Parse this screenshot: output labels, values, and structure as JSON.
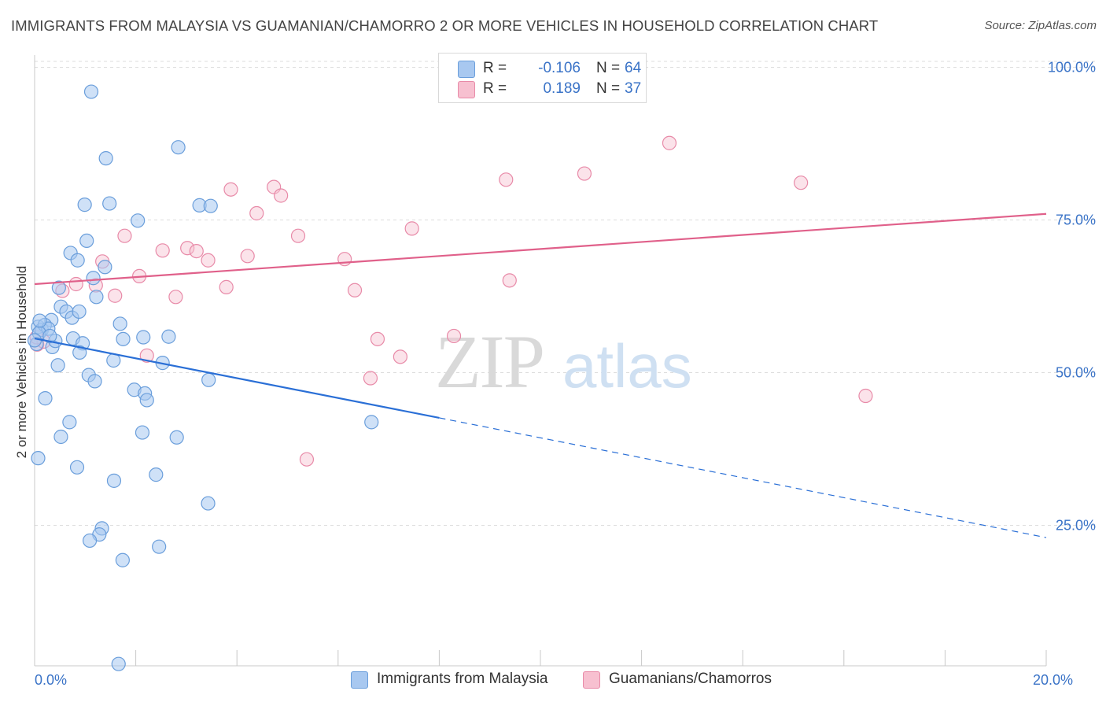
{
  "title": "IMMIGRANTS FROM MALAYSIA VS GUAMANIAN/CHAMORRO 2 OR MORE VEHICLES IN HOUSEHOLD CORRELATION CHART",
  "source": "Source: ZipAtlas.com",
  "watermark": {
    "zip": "ZIP",
    "atlas": "atlas"
  },
  "legend": {
    "r_label": "R =",
    "n_label": "N =",
    "series": [
      {
        "r": "-0.106",
        "n": "64"
      },
      {
        "r": "0.189",
        "n": "37"
      }
    ]
  },
  "colors": {
    "blue_fill": "#a8c8f0",
    "blue_stroke": "#6a9edb",
    "blue_line": "#2a6fd6",
    "pink_fill": "#f7c0d0",
    "pink_stroke": "#e88aa8",
    "pink_line": "#e0608a",
    "axis_label": "#3a73c7",
    "grid": "#dddddd"
  },
  "chart_data": {
    "type": "scatter",
    "title": "IMMIGRANTS FROM MALAYSIA VS GUAMANIAN/CHAMORRO 2 OR MORE VEHICLES IN HOUSEHOLD CORRELATION CHART",
    "xlabel": "",
    "ylabel": "2 or more Vehicles in Household",
    "xlim": [
      0,
      20
    ],
    "ylim": [
      2,
      102
    ],
    "x_tick_labels": [
      {
        "value": 0,
        "label": "0.0%"
      },
      {
        "value": 20,
        "label": "20.0%"
      }
    ],
    "y_tick_labels": [
      {
        "value": 100,
        "label": "100.0%"
      },
      {
        "value": 75,
        "label": "75.0%"
      },
      {
        "value": 50,
        "label": "50.0%"
      },
      {
        "value": 25,
        "label": "25.0%"
      }
    ],
    "grid": true,
    "legend_position": "top-center",
    "series": [
      {
        "name": "Immigrants from Malaysia",
        "points": [
          [
            1.12,
            96.0
          ],
          [
            1.41,
            85.1
          ],
          [
            2.84,
            86.9
          ],
          [
            0.99,
            77.5
          ],
          [
            1.48,
            77.7
          ],
          [
            3.26,
            77.4
          ],
          [
            3.48,
            77.3
          ],
          [
            2.04,
            74.9
          ],
          [
            0.71,
            69.6
          ],
          [
            1.03,
            71.6
          ],
          [
            0.85,
            68.4
          ],
          [
            1.39,
            67.3
          ],
          [
            1.16,
            65.5
          ],
          [
            0.48,
            63.9
          ],
          [
            1.22,
            62.4
          ],
          [
            0.33,
            58.6
          ],
          [
            0.52,
            60.8
          ],
          [
            0.63,
            60.0
          ],
          [
            0.74,
            59.0
          ],
          [
            0.88,
            60.0
          ],
          [
            0.07,
            57.5
          ],
          [
            0.14,
            57.0
          ],
          [
            0.2,
            57.8
          ],
          [
            0.27,
            57.2
          ],
          [
            0.09,
            56.5
          ],
          [
            0.04,
            54.7
          ],
          [
            0.0,
            55.3
          ],
          [
            0.35,
            54.2
          ],
          [
            0.41,
            55.2
          ],
          [
            0.76,
            55.6
          ],
          [
            0.95,
            54.8
          ],
          [
            0.89,
            53.3
          ],
          [
            1.69,
            58.0
          ],
          [
            1.75,
            55.5
          ],
          [
            2.15,
            55.8
          ],
          [
            2.65,
            55.9
          ],
          [
            1.56,
            52.0
          ],
          [
            2.53,
            51.6
          ],
          [
            0.46,
            51.2
          ],
          [
            1.07,
            49.6
          ],
          [
            1.19,
            48.6
          ],
          [
            3.44,
            48.8
          ],
          [
            1.97,
            47.2
          ],
          [
            2.18,
            46.6
          ],
          [
            0.21,
            45.8
          ],
          [
            2.22,
            45.5
          ],
          [
            0.69,
            41.9
          ],
          [
            6.66,
            41.9
          ],
          [
            0.52,
            39.5
          ],
          [
            2.13,
            40.2
          ],
          [
            2.81,
            39.4
          ],
          [
            0.07,
            36.0
          ],
          [
            0.84,
            34.5
          ],
          [
            2.4,
            33.3
          ],
          [
            1.57,
            32.3
          ],
          [
            3.43,
            28.6
          ],
          [
            1.33,
            24.5
          ],
          [
            1.28,
            23.5
          ],
          [
            1.09,
            22.5
          ],
          [
            2.46,
            21.5
          ],
          [
            1.74,
            19.3
          ],
          [
            1.66,
            2.3
          ],
          [
            0.1,
            58.5
          ],
          [
            0.3,
            56.0
          ]
        ],
        "trend_solid": [
          [
            0,
            55.6
          ],
          [
            8.0,
            42.6
          ]
        ],
        "trend_dashed": [
          [
            8.0,
            42.6
          ],
          [
            20.0,
            23.0
          ]
        ]
      },
      {
        "name": "Guamanians/Chamorros",
        "points": [
          [
            0.05,
            54.6
          ],
          [
            0.18,
            55.1
          ],
          [
            0.55,
            63.4
          ],
          [
            0.82,
            64.5
          ],
          [
            1.21,
            64.3
          ],
          [
            1.34,
            68.2
          ],
          [
            1.59,
            62.6
          ],
          [
            1.78,
            72.4
          ],
          [
            2.07,
            65.8
          ],
          [
            2.22,
            52.8
          ],
          [
            2.53,
            70.0
          ],
          [
            2.79,
            62.4
          ],
          [
            3.02,
            70.4
          ],
          [
            3.2,
            69.9
          ],
          [
            3.43,
            68.4
          ],
          [
            3.79,
            64.0
          ],
          [
            3.88,
            80.0
          ],
          [
            4.21,
            69.1
          ],
          [
            4.39,
            76.1
          ],
          [
            4.73,
            80.4
          ],
          [
            4.87,
            79.0
          ],
          [
            5.21,
            72.4
          ],
          [
            5.38,
            35.8
          ],
          [
            6.13,
            68.6
          ],
          [
            6.33,
            63.5
          ],
          [
            6.64,
            49.1
          ],
          [
            6.78,
            55.5
          ],
          [
            7.23,
            52.6
          ],
          [
            7.46,
            73.6
          ],
          [
            8.29,
            56.0
          ],
          [
            9.32,
            81.6
          ],
          [
            9.39,
            65.1
          ],
          [
            10.87,
            82.6
          ],
          [
            12.55,
            87.6
          ],
          [
            15.15,
            81.1
          ],
          [
            16.43,
            46.2
          ],
          [
            0.04,
            55.8
          ]
        ],
        "trend_solid": [
          [
            0,
            64.5
          ],
          [
            20.0,
            76.0
          ]
        ]
      }
    ]
  }
}
